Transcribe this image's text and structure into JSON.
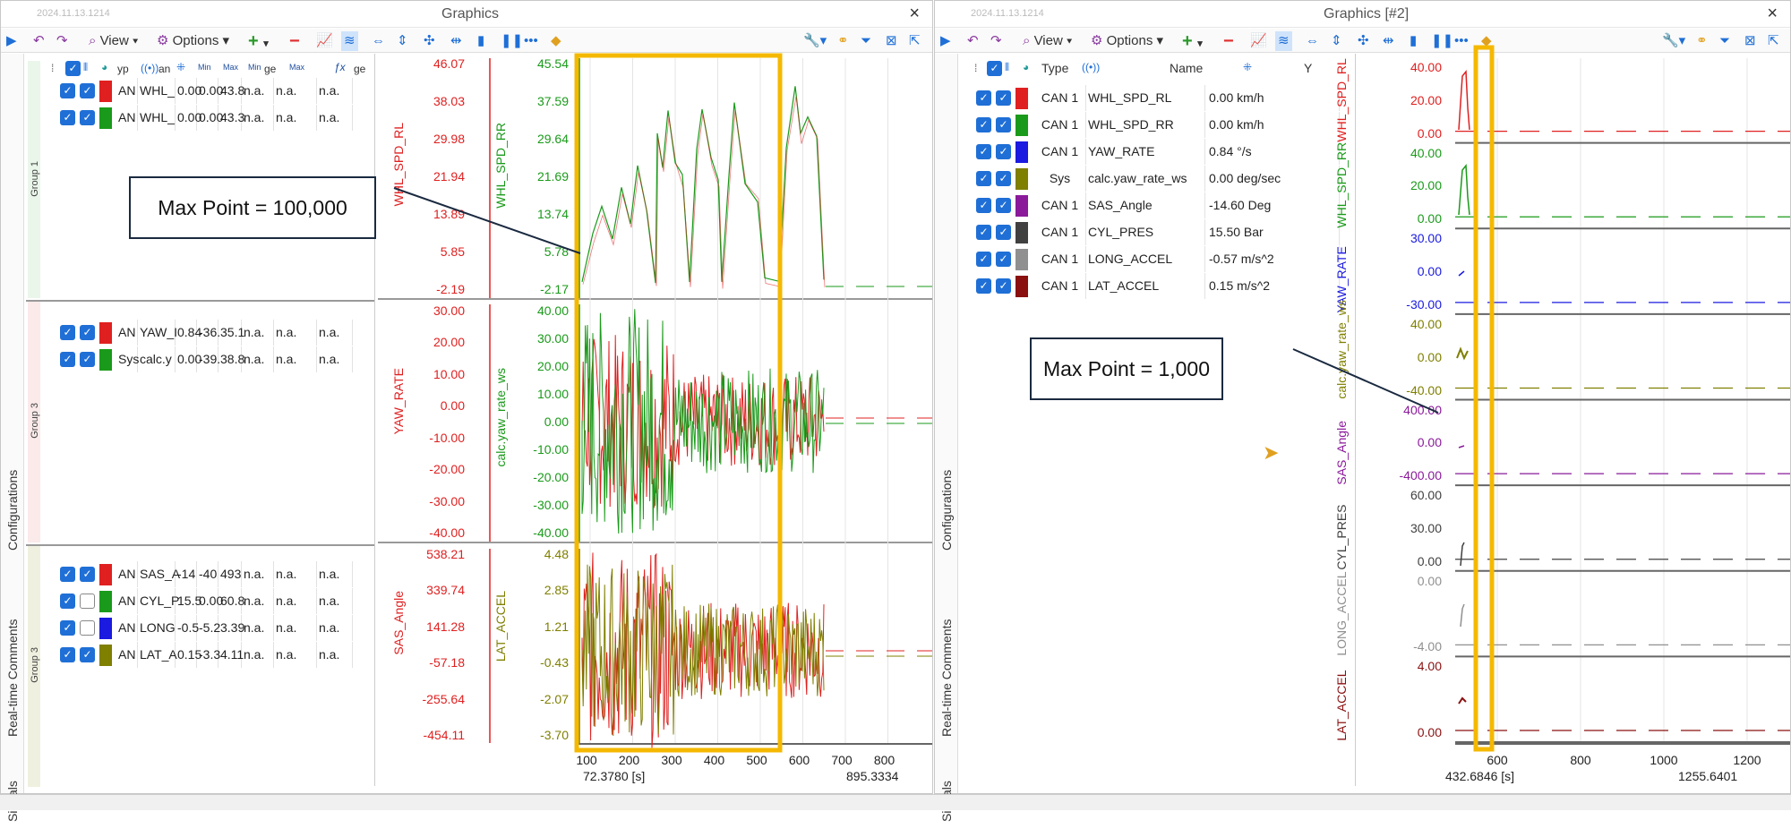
{
  "left_window": {
    "stamp": "2024.11.13.1214",
    "title": "Graphics",
    "close": "×",
    "toolbar": {
      "view": "View",
      "options": "Options"
    },
    "side_tabs": [
      "Configurations",
      "Real-time Comments",
      "Signals"
    ],
    "header": {
      "c1": "yp",
      "c2": "an",
      "c3": "Min",
      "c4": "Max",
      "c5": "Min",
      "c6": "ge",
      "c7": "Max",
      "c8": "ge"
    },
    "groups": [
      {
        "label": "Group 1",
        "rows": [
          {
            "type": "AN",
            "name": "WHL_",
            "v1": "0.00",
            "v2": "0.00",
            "v3": "43.8",
            "v4": "n.a.",
            "v5": "n.a.",
            "v6": "n.a.",
            "color": "#e02020",
            "on": true
          },
          {
            "type": "AN",
            "name": "WHL_",
            "v1": "0.00",
            "v2": "0.00",
            "v3": "43.3",
            "v4": "n.a.",
            "v5": "n.a.",
            "v6": "n.a.",
            "color": "#1a9a1a",
            "on": true
          }
        ]
      },
      {
        "label": "Group 3",
        "rows": [
          {
            "type": "AN",
            "name": "YAW_I",
            "v1": "0.84",
            "v2": "-36.",
            "v3": "35.1",
            "v4": "n.a.",
            "v5": "n.a.",
            "v6": "n.a.",
            "color": "#e02020",
            "on": true
          },
          {
            "type": "Sys",
            "name": "calc.y",
            "v1": "0.00",
            "v2": "-39.",
            "v3": "38.8",
            "v4": "n.a.",
            "v5": "n.a.",
            "v6": "n.a.",
            "color": "#1a9a1a",
            "on": true
          }
        ]
      },
      {
        "label": "Group 3",
        "rows": [
          {
            "type": "AN",
            "name": "SAS_A",
            "v1": "-14",
            "v2": "-40",
            "v3": "493",
            "v4": "n.a.",
            "v5": "n.a.",
            "v6": "n.a.",
            "color": "#e02020",
            "on": true
          },
          {
            "type": "AN",
            "name": "CYL_P",
            "v1": "15.5",
            "v2": "0.00",
            "v3": "60.8",
            "v4": "n.a.",
            "v5": "n.a.",
            "v6": "n.a.",
            "color": "#1a9a1a",
            "on": false
          },
          {
            "type": "AN",
            "name": "LONG",
            "v1": "-0.5",
            "v2": "-5.2",
            "v3": "3.39",
            "v4": "n.a.",
            "v5": "n.a.",
            "v6": "n.a.",
            "color": "#1a1ae0",
            "on": false
          },
          {
            "type": "AN",
            "name": "LAT_A",
            "v1": "0.15",
            "v2": "-3.3",
            "v3": "4.11",
            "v4": "n.a.",
            "v5": "n.a.",
            "v6": "n.a.",
            "color": "#7f7f00",
            "on": true
          }
        ]
      }
    ],
    "callout": "Max Point  =  100,000",
    "plots": [
      {
        "axis1": "WHL_SPD_RL",
        "axis2": "WHL_SPD_RR",
        "ticks1": [
          "46.07",
          "38.03",
          "29.98",
          "21.94",
          "13.89",
          "5.85",
          "-2.19"
        ],
        "ticks2": [
          "45.54",
          "37.59",
          "29.64",
          "21.69",
          "13.74",
          "5.78",
          "-2.17"
        ]
      },
      {
        "axis1": "YAW_RATE",
        "axis2": "calc.yaw_rate_ws",
        "ticks1": [
          "30.00",
          "20.00",
          "10.00",
          "0.00",
          "-10.00",
          "-20.00",
          "-30.00",
          "-40.00"
        ],
        "ticks2": [
          "40.00",
          "30.00",
          "20.00",
          "10.00",
          "0.00",
          "-10.00",
          "-20.00",
          "-30.00",
          "-40.00"
        ]
      },
      {
        "axis1": "SAS_Angle",
        "axis2": "LAT_ACCEL",
        "ticks1": [
          "538.21",
          "339.74",
          "141.28",
          "-57.18",
          "-255.64",
          "-454.11"
        ],
        "ticks2": [
          "4.48",
          "2.85",
          "1.21",
          "-0.43",
          "-2.07",
          "-3.70"
        ]
      }
    ],
    "xticks": [
      "100",
      "200",
      "300",
      "400",
      "500",
      "600",
      "700",
      "800"
    ],
    "x_start": "72.3780 [s]",
    "x_end": "895.3334"
  },
  "right_window": {
    "stamp": "2024.11.13.1214",
    "title": "Graphics [#2]",
    "close": "×",
    "toolbar": {
      "view": "View",
      "options": "Options"
    },
    "side_tabs": [
      "Configurations",
      "Real-time Comments",
      "Signals"
    ],
    "header": {
      "type": "Type",
      "name": "Name",
      "y": "Y"
    },
    "rows": [
      {
        "type": "CAN 1",
        "name": "WHL_SPD_RL",
        "y": "0.00 km/h",
        "color": "#e02020"
      },
      {
        "type": "CAN 1",
        "name": "WHL_SPD_RR",
        "y": "0.00 km/h",
        "color": "#1a9a1a"
      },
      {
        "type": "CAN 1",
        "name": "YAW_RATE",
        "y": "0.84 °/s",
        "color": "#1a1ae0"
      },
      {
        "type": "Sys",
        "name": "calc.yaw_rate_ws",
        "y": "0.00 deg/sec",
        "color": "#7f7f00"
      },
      {
        "type": "CAN 1",
        "name": "SAS_Angle",
        "y": "-14.60 Deg",
        "color": "#8a1a9a"
      },
      {
        "type": "CAN 1",
        "name": "CYL_PRES",
        "y": "15.50 Bar",
        "color": "#404040"
      },
      {
        "type": "CAN 1",
        "name": "LONG_ACCEL",
        "y": "-0.57 m/s^2",
        "color": "#909090"
      },
      {
        "type": "CAN 1",
        "name": "LAT_ACCEL",
        "y": "0.15 m/s^2",
        "color": "#8a1010"
      }
    ],
    "callout": "Max Point  =  1,000",
    "strips": [
      {
        "name": "WHL_SPD_RL",
        "color": "#e02020",
        "ticks": [
          "40.00",
          "20.00",
          "0.00"
        ]
      },
      {
        "name": "WHL_SPD_RR",
        "color": "#1a9a1a",
        "ticks": [
          "40.00",
          "20.00",
          "0.00"
        ]
      },
      {
        "name": "YAW_RATE",
        "color": "#1a1ae0",
        "ticks": [
          "30.00",
          "0.00",
          "-30.00"
        ]
      },
      {
        "name": "calc.yaw_rate_ws",
        "color": "#7f7f00",
        "ticks": [
          "40.00",
          "0.00",
          "-40.00"
        ]
      },
      {
        "name": "SAS_Angle",
        "color": "#8a1a9a",
        "ticks": [
          "400.00",
          "0.00",
          "-400.00"
        ]
      },
      {
        "name": "CYL_PRES",
        "color": "#404040",
        "ticks": [
          "60.00",
          "30.00",
          "0.00"
        ]
      },
      {
        "name": "LONG_ACCEL",
        "color": "#909090",
        "ticks": [
          "0.00",
          "-4.00"
        ]
      },
      {
        "name": "LAT_ACCEL",
        "color": "#8a1010",
        "ticks": [
          "4.00",
          "0.00"
        ]
      }
    ],
    "xticks": [
      "600",
      "800",
      "1000",
      "1200"
    ],
    "x_start": "432.6846 [s]",
    "x_end": "1255.6401"
  },
  "colors": {
    "highlight": "#f5b800",
    "checkbox": "#1f6fd6",
    "callout_border": "#1a2a40"
  }
}
